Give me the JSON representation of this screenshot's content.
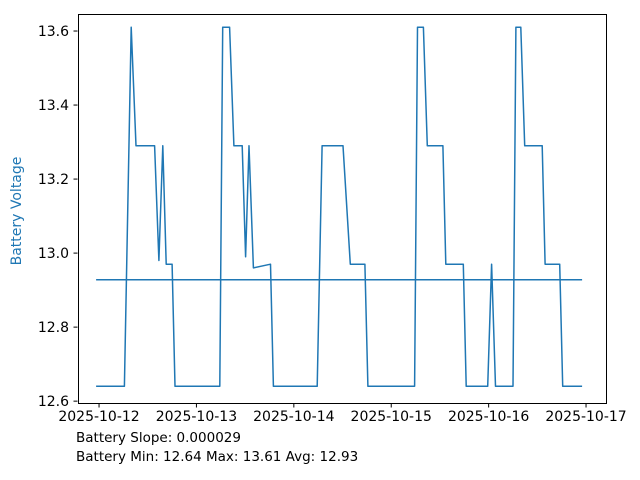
{
  "chart_data": {
    "type": "line",
    "title": "",
    "xlabel": "",
    "ylabel": "Battery Voltage",
    "x_encoding": "days after 2025-10-12 00:00",
    "x_tick_positions": [
      0,
      1,
      2,
      3,
      4,
      5
    ],
    "x_tick_labels": [
      "2025-10-12",
      "2025-10-13",
      "2025-10-14",
      "2025-10-15",
      "2025-10-16",
      "2025-10-17"
    ],
    "y_tick_labels": [
      "12.6",
      "12.8",
      "13.0",
      "13.2",
      "13.4",
      "13.6"
    ],
    "xlim": [
      -0.216,
      5.205
    ],
    "ylim": [
      12.595,
      13.646
    ],
    "grid": false,
    "legend": "none",
    "colors": {
      "line": "#1f77b4",
      "trend": "#1f77b4",
      "axis": "#000000",
      "tick_text": "#000000",
      "ylabel_text": "#1f77b4",
      "background": "#ffffff"
    },
    "series": [
      {
        "name": "battery-voltage",
        "points": [
          [
            -0.03,
            12.64
          ],
          [
            0.26,
            12.64
          ],
          [
            0.33,
            13.61
          ],
          [
            0.38,
            13.29
          ],
          [
            0.57,
            13.29
          ],
          [
            0.615,
            12.98
          ],
          [
            0.655,
            13.29
          ],
          [
            0.69,
            12.97
          ],
          [
            0.75,
            12.97
          ],
          [
            0.78,
            12.64
          ],
          [
            1.24,
            12.64
          ],
          [
            1.27,
            13.61
          ],
          [
            1.34,
            13.61
          ],
          [
            1.385,
            13.29
          ],
          [
            1.47,
            13.29
          ],
          [
            1.505,
            12.99
          ],
          [
            1.54,
            13.29
          ],
          [
            1.585,
            12.96
          ],
          [
            1.76,
            12.97
          ],
          [
            1.79,
            12.64
          ],
          [
            2.24,
            12.64
          ],
          [
            2.29,
            13.29
          ],
          [
            2.505,
            13.29
          ],
          [
            2.58,
            12.97
          ],
          [
            2.73,
            12.97
          ],
          [
            2.76,
            12.64
          ],
          [
            3.24,
            12.64
          ],
          [
            3.27,
            13.61
          ],
          [
            3.33,
            13.61
          ],
          [
            3.37,
            13.29
          ],
          [
            3.53,
            13.29
          ],
          [
            3.56,
            12.97
          ],
          [
            3.74,
            12.97
          ],
          [
            3.77,
            12.64
          ],
          [
            3.99,
            12.64
          ],
          [
            4.03,
            12.97
          ],
          [
            4.07,
            12.64
          ],
          [
            4.25,
            12.64
          ],
          [
            4.28,
            13.61
          ],
          [
            4.33,
            13.61
          ],
          [
            4.37,
            13.29
          ],
          [
            4.55,
            13.29
          ],
          [
            4.58,
            12.97
          ],
          [
            4.73,
            12.97
          ],
          [
            4.76,
            12.64
          ],
          [
            4.96,
            12.64
          ]
        ]
      },
      {
        "name": "average-trend-line",
        "points": [
          [
            -0.03,
            12.928
          ],
          [
            4.96,
            12.928
          ]
        ]
      }
    ],
    "annotations": [
      "Battery Slope: 0.000029",
      "Battery Min: 12.64 Max: 13.61 Avg: 12.93"
    ],
    "stats": {
      "slope": "0.000029",
      "min": "12.64",
      "max": "13.61",
      "avg": "12.93"
    }
  }
}
